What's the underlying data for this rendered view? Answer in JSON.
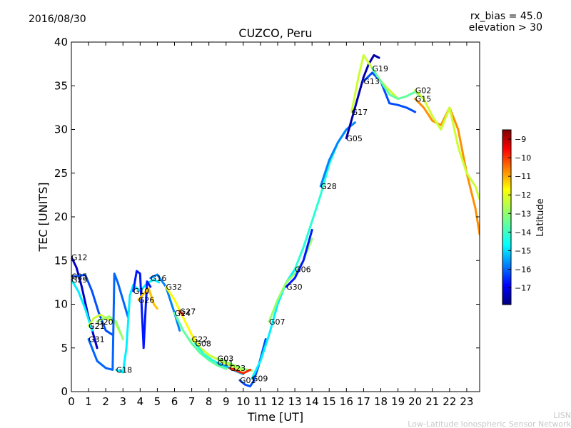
{
  "header": {
    "date": "2016/08/30",
    "title": "CUZCO, Peru",
    "rx_bias": "rx_bias = 45.0",
    "elevation": "elevation > 30"
  },
  "footer": {
    "line1": "LISN",
    "line2": "Low-Latitude Ionospheric Sensor Network"
  },
  "colorbar": {
    "label": "Latitude",
    "range": [
      -17.9,
      -8.5
    ],
    "ticks": [
      "-9",
      "-10",
      "-11",
      "-12",
      "-13",
      "-14",
      "-15",
      "-16",
      "-17"
    ],
    "colormap": [
      "#00007f",
      "#0000ff",
      "#007fff",
      "#00ffff",
      "#7fff7f",
      "#ffff00",
      "#ff7f00",
      "#ff0000",
      "#7f0000"
    ]
  },
  "chart_data": {
    "type": "line",
    "xlabel": "Time [UT]",
    "ylabel": "TEC [UNITS]",
    "xlim": [
      0,
      23.75
    ],
    "ylim": [
      0,
      40
    ],
    "xticks": [
      "0",
      "1",
      "2",
      "3",
      "4",
      "5",
      "6",
      "7",
      "8",
      "9",
      "10",
      "11",
      "12",
      "13",
      "14",
      "15",
      "16",
      "17",
      "18",
      "19",
      "20",
      "21",
      "22",
      "23"
    ],
    "yticks": [
      "0",
      "5",
      "10",
      "15",
      "20",
      "25",
      "30",
      "35",
      "40"
    ],
    "series": [
      {
        "name": "G12",
        "lat": -17.2,
        "x": [
          0.0,
          0.3,
          0.6,
          1.0,
          1.5
        ],
        "y": [
          15.4,
          14.2,
          12.0,
          8.5,
          5.0
        ]
      },
      {
        "name": "G25",
        "lat": -16.0,
        "x": [
          0.0,
          0.4,
          0.8,
          1.2,
          1.6,
          2.0,
          2.4
        ],
        "y": [
          13.2,
          13.2,
          13.4,
          11.5,
          9.0,
          7.0,
          6.5
        ]
      },
      {
        "name": "G29",
        "lat": -14.5,
        "x": [
          0.0,
          0.4,
          0.8,
          1.2
        ],
        "y": [
          12.8,
          11.5,
          9.5,
          7.0
        ]
      },
      {
        "name": "G21",
        "lat": -12.5,
        "x": [
          1.0,
          1.3,
          1.7,
          2.1,
          2.5,
          2.9
        ],
        "y": [
          7.5,
          8.4,
          8.8,
          8.3,
          8.1,
          6.5
        ]
      },
      {
        "name": "G20",
        "lat": -13.0,
        "x": [
          1.5,
          1.8,
          2.2,
          2.6,
          3.0
        ],
        "y": [
          8.0,
          8.3,
          8.6,
          8.0,
          6.0
        ]
      },
      {
        "name": "G31",
        "lat": -15.8,
        "x": [
          1.0,
          1.5,
          2.0,
          2.4,
          2.5,
          2.7,
          3.0,
          3.3
        ],
        "y": [
          6.0,
          3.5,
          2.7,
          2.5,
          13.5,
          12.5,
          10.5,
          8.5
        ]
      },
      {
        "name": "G18",
        "lat": -14.5,
        "x": [
          2.6,
          3.0,
          3.2,
          3.4,
          3.6,
          4.0,
          4.4,
          4.8,
          5.1
        ],
        "y": [
          2.5,
          2.2,
          5.0,
          11.0,
          12.2,
          11.5,
          12.4,
          12.8,
          12.5
        ]
      },
      {
        "name": "G10",
        "lat": -16.5,
        "x": [
          3.6,
          3.8,
          4.0,
          4.2,
          4.4,
          4.6
        ],
        "y": [
          11.5,
          13.8,
          13.5,
          5.0,
          12.6,
          12.0
        ]
      },
      {
        "name": "G26",
        "lat": -11.5,
        "x": [
          3.9,
          4.2,
          4.5,
          4.8,
          5.0
        ],
        "y": [
          10.5,
          11.2,
          11.8,
          10.0,
          9.5
        ]
      },
      {
        "name": "G16",
        "lat": -15.5,
        "x": [
          4.6,
          5.0,
          5.5,
          6.0,
          6.3
        ],
        "y": [
          13.0,
          13.4,
          12.0,
          9.0,
          7.0
        ]
      },
      {
        "name": "G32",
        "lat": -12.0,
        "x": [
          5.5,
          6.0,
          6.5,
          7.0,
          7.5,
          8.0
        ],
        "y": [
          12.0,
          10.5,
          8.5,
          6.5,
          5.0,
          4.2
        ]
      },
      {
        "name": "G27",
        "lat": -10.0,
        "x": [
          6.3,
          6.4,
          6.5
        ],
        "y": [
          9.2,
          9.0,
          8.8
        ]
      },
      {
        "name": "G14",
        "lat": -13.5,
        "x": [
          6.0,
          6.5,
          7.0,
          7.5,
          8.0,
          8.5,
          9.0
        ],
        "y": [
          9.0,
          7.0,
          5.5,
          4.4,
          3.6,
          3.0,
          2.6
        ]
      },
      {
        "name": "G22",
        "lat": -12.5,
        "x": [
          7.0,
          7.5,
          8.0,
          8.5,
          9.0,
          9.5,
          10.0
        ],
        "y": [
          6.0,
          5.0,
          4.2,
          3.7,
          3.2,
          2.8,
          2.4
        ]
      },
      {
        "name": "G08",
        "lat": -14.0,
        "x": [
          7.2,
          7.7,
          8.2,
          8.7,
          9.2
        ],
        "y": [
          5.5,
          4.3,
          3.6,
          3.1,
          2.7
        ]
      },
      {
        "name": "G03",
        "lat": -13.0,
        "x": [
          8.5,
          9.0,
          9.5,
          10.0,
          10.5
        ],
        "y": [
          3.8,
          3.4,
          3.0,
          2.6,
          2.4
        ]
      },
      {
        "name": "G11",
        "lat": -15.0,
        "x": [
          8.5,
          9.0,
          9.5,
          10.0
        ],
        "y": [
          3.3,
          2.9,
          2.4,
          2.0
        ]
      },
      {
        "name": "G23",
        "lat": -10.0,
        "x": [
          9.2,
          9.6,
          10.0,
          10.4
        ],
        "y": [
          2.7,
          2.4,
          2.1,
          2.5
        ]
      },
      {
        "name": "G01",
        "lat": -16.0,
        "x": [
          9.8,
          10.1,
          10.4,
          10.6,
          10.9,
          11.3
        ],
        "y": [
          1.3,
          0.8,
          0.6,
          1.2,
          3.0,
          6.0
        ]
      },
      {
        "name": "G09",
        "lat": -14.5,
        "x": [
          10.5,
          11.0,
          11.5,
          12.0,
          12.5,
          13.0
        ],
        "y": [
          1.5,
          3.5,
          6.5,
          10.0,
          12.5,
          14.0
        ]
      },
      {
        "name": "G07",
        "lat": -13.0,
        "x": [
          11.5,
          12.0,
          12.5,
          13.0,
          13.5,
          14.0
        ],
        "y": [
          8.0,
          10.5,
          12.5,
          13.5,
          15.0,
          17.5
        ]
      },
      {
        "name": "G30",
        "lat": -16.5,
        "x": [
          12.5,
          13.0,
          13.5,
          14.0
        ],
        "y": [
          12.0,
          13.0,
          15.0,
          18.5
        ]
      },
      {
        "name": "G06",
        "lat": -14.0,
        "x": [
          13.0,
          13.5,
          14.0,
          14.5,
          15.0,
          15.5,
          16.0
        ],
        "y": [
          14.0,
          16.5,
          19.5,
          22.5,
          26.0,
          28.5,
          30.0
        ]
      },
      {
        "name": "G28",
        "lat": -15.5,
        "x": [
          14.5,
          15.0,
          15.5,
          16.0,
          16.5
        ],
        "y": [
          23.5,
          26.5,
          28.5,
          30.0,
          30.8
        ]
      },
      {
        "name": "G05",
        "lat": -17.5,
        "x": [
          16.0,
          16.5,
          17.0,
          17.3,
          17.6,
          17.9
        ],
        "y": [
          29.0,
          32.5,
          36.0,
          37.5,
          38.5,
          38.2
        ]
      },
      {
        "name": "G17",
        "lat": -12.5,
        "x": [
          16.3,
          16.7,
          17.0,
          17.5,
          18.0,
          18.5,
          19.0
        ],
        "y": [
          32.0,
          36.0,
          38.5,
          37.0,
          35.5,
          34.5,
          33.5
        ]
      },
      {
        "name": "G13",
        "lat": -16.0,
        "x": [
          17.0,
          17.5,
          18.0,
          18.5,
          19.0,
          19.5,
          20.0
        ],
        "y": [
          35.5,
          36.5,
          35.5,
          33.0,
          32.8,
          32.5,
          32.0
        ]
      },
      {
        "name": "G19",
        "lat": -13.5,
        "x": [
          17.5,
          18.0,
          18.5,
          19.0,
          19.5,
          20.0,
          20.5
        ],
        "y": [
          37.0,
          35.5,
          34.0,
          33.5,
          33.8,
          34.3,
          33.5
        ]
      },
      {
        "name": "G15",
        "lat": -11.0,
        "x": [
          20.0,
          20.5,
          21.0,
          21.5,
          22.0,
          22.5,
          23.0,
          23.5,
          23.75
        ],
        "y": [
          33.5,
          32.5,
          31.0,
          30.5,
          32.5,
          30.0,
          25.0,
          21.0,
          18.0
        ]
      },
      {
        "name": "G02",
        "lat": -12.5,
        "x": [
          20.0,
          20.5,
          21.0,
          21.5,
          22.0,
          22.5,
          23.0,
          23.5,
          23.75
        ],
        "y": [
          34.5,
          33.5,
          31.5,
          30.0,
          32.5,
          28.0,
          25.0,
          23.5,
          22.0
        ]
      }
    ]
  }
}
